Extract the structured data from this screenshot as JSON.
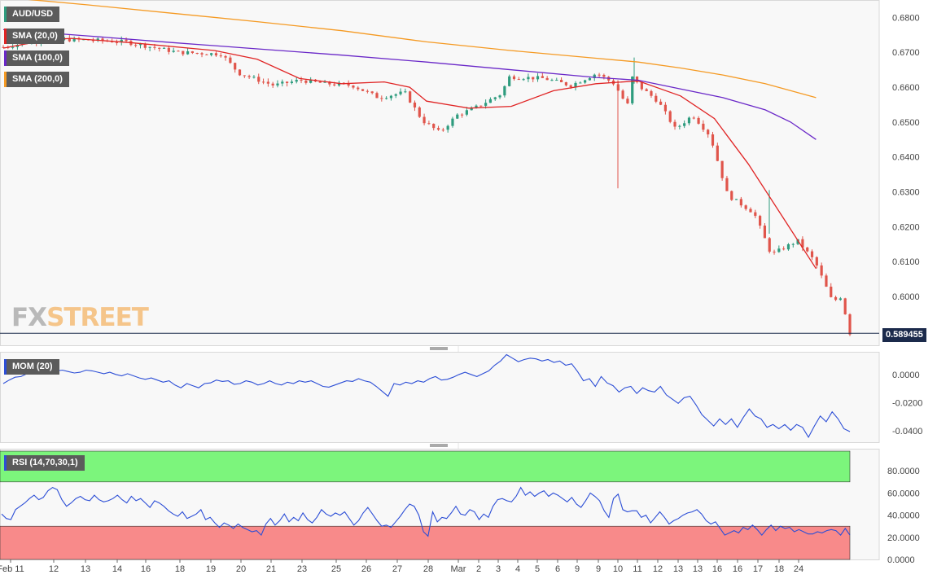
{
  "legends": {
    "symbol": "AUD/USD",
    "sma20": "SMA (20,0)",
    "sma100": "SMA (100,0)",
    "sma200": "SMA (200,0)",
    "mom": "MOM (20)",
    "rsi": "RSI (14,70,30,1)"
  },
  "brand": {
    "fx": "FX",
    "street": "STREET"
  },
  "current_price": "0.589455",
  "colors": {
    "bull": "#2e9c7e",
    "bear": "#e0554b",
    "sma20": "#e02424",
    "sma100": "#6a28c8",
    "sma200": "#f59a23",
    "mom": "#2c4ed6",
    "rsi": "#2c4ed6",
    "overbought": "#7cf57c",
    "oversold": "#f88a8a"
  },
  "chart_data": [
    {
      "type": "candlestick",
      "title": "AUD/USD",
      "ylim": [
        0.586,
        0.685
      ],
      "y_ticks": [
        "0.6000",
        "0.6100",
        "0.6200",
        "0.6300",
        "0.6400",
        "0.6500",
        "0.6600",
        "0.6700",
        "0.6800"
      ],
      "x_ticks": [
        "Feb 11",
        "12",
        "13",
        "14",
        "16",
        "18",
        "19",
        "20",
        "21",
        "23",
        "25",
        "26",
        "27",
        "28",
        "Mar",
        "2",
        "3",
        "4",
        "5",
        "6",
        "9",
        "9",
        "10",
        "11",
        "12",
        "13",
        "13",
        "16",
        "16",
        "17",
        "18",
        "24"
      ],
      "series": [
        {
          "name": "SMA (20,0)",
          "values": [
            [
              0,
              0.6712
            ],
            [
              0.05,
              0.6735
            ],
            [
              0.08,
              0.674
            ],
            [
              0.15,
              0.6728
            ],
            [
              0.25,
              0.6705
            ],
            [
              0.3,
              0.668
            ],
            [
              0.35,
              0.6625
            ],
            [
              0.4,
              0.661
            ],
            [
              0.45,
              0.6615
            ],
            [
              0.48,
              0.66
            ],
            [
              0.5,
              0.656
            ],
            [
              0.55,
              0.654
            ],
            [
              0.6,
              0.6545
            ],
            [
              0.65,
              0.659
            ],
            [
              0.7,
              0.661
            ],
            [
              0.75,
              0.6618
            ],
            [
              0.8,
              0.6575
            ],
            [
              0.84,
              0.651
            ],
            [
              0.88,
              0.638
            ],
            [
              0.92,
              0.623
            ],
            [
              0.96,
              0.608
            ]
          ]
        },
        {
          "name": "SMA (100,0)",
          "values": [
            [
              0,
              0.6765
            ],
            [
              0.1,
              0.6747
            ],
            [
              0.2,
              0.6728
            ],
            [
              0.3,
              0.671
            ],
            [
              0.4,
              0.6692
            ],
            [
              0.5,
              0.6672
            ],
            [
              0.6,
              0.665
            ],
            [
              0.7,
              0.6628
            ],
            [
              0.75,
              0.662
            ],
            [
              0.8,
              0.6595
            ],
            [
              0.85,
              0.657
            ],
            [
              0.9,
              0.6535
            ],
            [
              0.93,
              0.65
            ],
            [
              0.96,
              0.645
            ]
          ]
        },
        {
          "name": "SMA (200,0)",
          "values": [
            [
              0,
              0.6858
            ],
            [
              0.1,
              0.6836
            ],
            [
              0.2,
              0.6812
            ],
            [
              0.3,
              0.6788
            ],
            [
              0.4,
              0.6762
            ],
            [
              0.5,
              0.673
            ],
            [
              0.6,
              0.6705
            ],
            [
              0.7,
              0.6683
            ],
            [
              0.75,
              0.6672
            ],
            [
              0.8,
              0.6655
            ],
            [
              0.85,
              0.6635
            ],
            [
              0.9,
              0.661
            ],
            [
              0.96,
              0.657
            ]
          ]
        }
      ],
      "last_price": 0.589455
    },
    {
      "type": "line",
      "title": "MOM (20)",
      "ylim": [
        -0.048,
        0.016
      ],
      "y_ticks": [
        "0.0000",
        "-0.0200",
        "-0.0400"
      ],
      "series": [
        {
          "name": "MOM (20)",
          "values": [
            -0.0065,
            -0.004,
            -0.002,
            -0.0015,
            0.0005,
            0.002,
            0.004,
            0.006,
            0.004,
            0.0025,
            0.003,
            0.002,
            0.001,
            0.0015,
            0.003,
            0.0025,
            0.0015,
            0.0005,
            0.0015,
            0.0,
            -0.001,
            0.0005,
            -0.001,
            -0.0025,
            -0.0035,
            -0.0025,
            -0.004,
            -0.0055,
            -0.0045,
            -0.0075,
            -0.0095,
            -0.0065,
            -0.008,
            -0.0095,
            -0.0065,
            -0.006,
            -0.004,
            -0.005,
            -0.0045,
            -0.007,
            -0.0065,
            -0.0045,
            -0.0055,
            -0.0075,
            -0.0065,
            -0.0045,
            -0.0065,
            -0.0075,
            -0.0055,
            -0.0065,
            -0.0045,
            -0.0055,
            -0.0045,
            -0.0065,
            -0.0085,
            -0.009,
            -0.0075,
            -0.006,
            -0.0045,
            -0.005,
            -0.003,
            -0.0045,
            -0.0055,
            -0.0085,
            -0.012,
            -0.0155,
            -0.0065,
            -0.0075,
            -0.0055,
            -0.0065,
            -0.0045,
            -0.0055,
            -0.003,
            -0.0015,
            -0.004,
            -0.0035,
            -0.002,
            0.0,
            0.0015,
            0.0,
            -0.0015,
            0.0005,
            0.0025,
            0.0065,
            0.0095,
            0.014,
            0.0115,
            0.009,
            0.0105,
            0.0115,
            0.011,
            0.0095,
            0.0105,
            0.0085,
            0.0095,
            0.0065,
            0.0075,
            0.002,
            -0.0045,
            -0.003,
            -0.0085,
            -0.0015,
            -0.006,
            -0.008,
            -0.0125,
            -0.0095,
            -0.0085,
            -0.0135,
            -0.0095,
            -0.0115,
            -0.0125,
            -0.0085,
            -0.0145,
            -0.0175,
            -0.0205,
            -0.0165,
            -0.0155,
            -0.0215,
            -0.0285,
            -0.0325,
            -0.0365,
            -0.0315,
            -0.0355,
            -0.0315,
            -0.0375,
            -0.0305,
            -0.0245,
            -0.0295,
            -0.0315,
            -0.0375,
            -0.0355,
            -0.0385,
            -0.0355,
            -0.0395,
            -0.0355,
            -0.0375,
            -0.0445,
            -0.0365,
            -0.0295,
            -0.0335,
            -0.0265,
            -0.0315,
            -0.0385,
            -0.0405
          ]
        }
      ]
    },
    {
      "type": "line",
      "title": "RSI (14,70,30,1)",
      "ylim": [
        0,
        100
      ],
      "y_ticks": [
        "0.0000",
        "20.0000",
        "40.0000",
        "60.0000",
        "80.0000"
      ],
      "bands": {
        "overbought": 70,
        "oversold": 30
      },
      "series": [
        {
          "name": "RSI (14,70,30,1)",
          "values": [
            41,
            37,
            36,
            45,
            48,
            51,
            55,
            58,
            54,
            56,
            62,
            65,
            63,
            54,
            48,
            51,
            55,
            57,
            54,
            53,
            58,
            54,
            52,
            53,
            55,
            58,
            54,
            51,
            57,
            53,
            55,
            51,
            47,
            53,
            51,
            48,
            44,
            41,
            39,
            43,
            37,
            39,
            41,
            45,
            36,
            38,
            33,
            29,
            33,
            31,
            28,
            32,
            29,
            27,
            25,
            26,
            22,
            32,
            37,
            31,
            35,
            41,
            34,
            38,
            35,
            42,
            36,
            33,
            38,
            45,
            41,
            39,
            42,
            40,
            43,
            37,
            31,
            35,
            42,
            47,
            41,
            35,
            30,
            31,
            29,
            34,
            39,
            45,
            50,
            48,
            40,
            25,
            21,
            43,
            34,
            38,
            37,
            42,
            48,
            41,
            40,
            45,
            43,
            36,
            41,
            38,
            48,
            54,
            55,
            53,
            52,
            57,
            65,
            58,
            61,
            57,
            60,
            62,
            57,
            60,
            58,
            55,
            52,
            56,
            50,
            47,
            53,
            60,
            57,
            53,
            44,
            38,
            55,
            59,
            45,
            43,
            44,
            44,
            38,
            40,
            33,
            38,
            43,
            38,
            32,
            35,
            37,
            40,
            42,
            43,
            45,
            41,
            35,
            32,
            34,
            28,
            22,
            24,
            26,
            24,
            29,
            27,
            31,
            27,
            22,
            27,
            31,
            26,
            30,
            28,
            29,
            25,
            27,
            25,
            23,
            23,
            25,
            24,
            26,
            27,
            26,
            22,
            28,
            22
          ]
        }
      ]
    }
  ]
}
